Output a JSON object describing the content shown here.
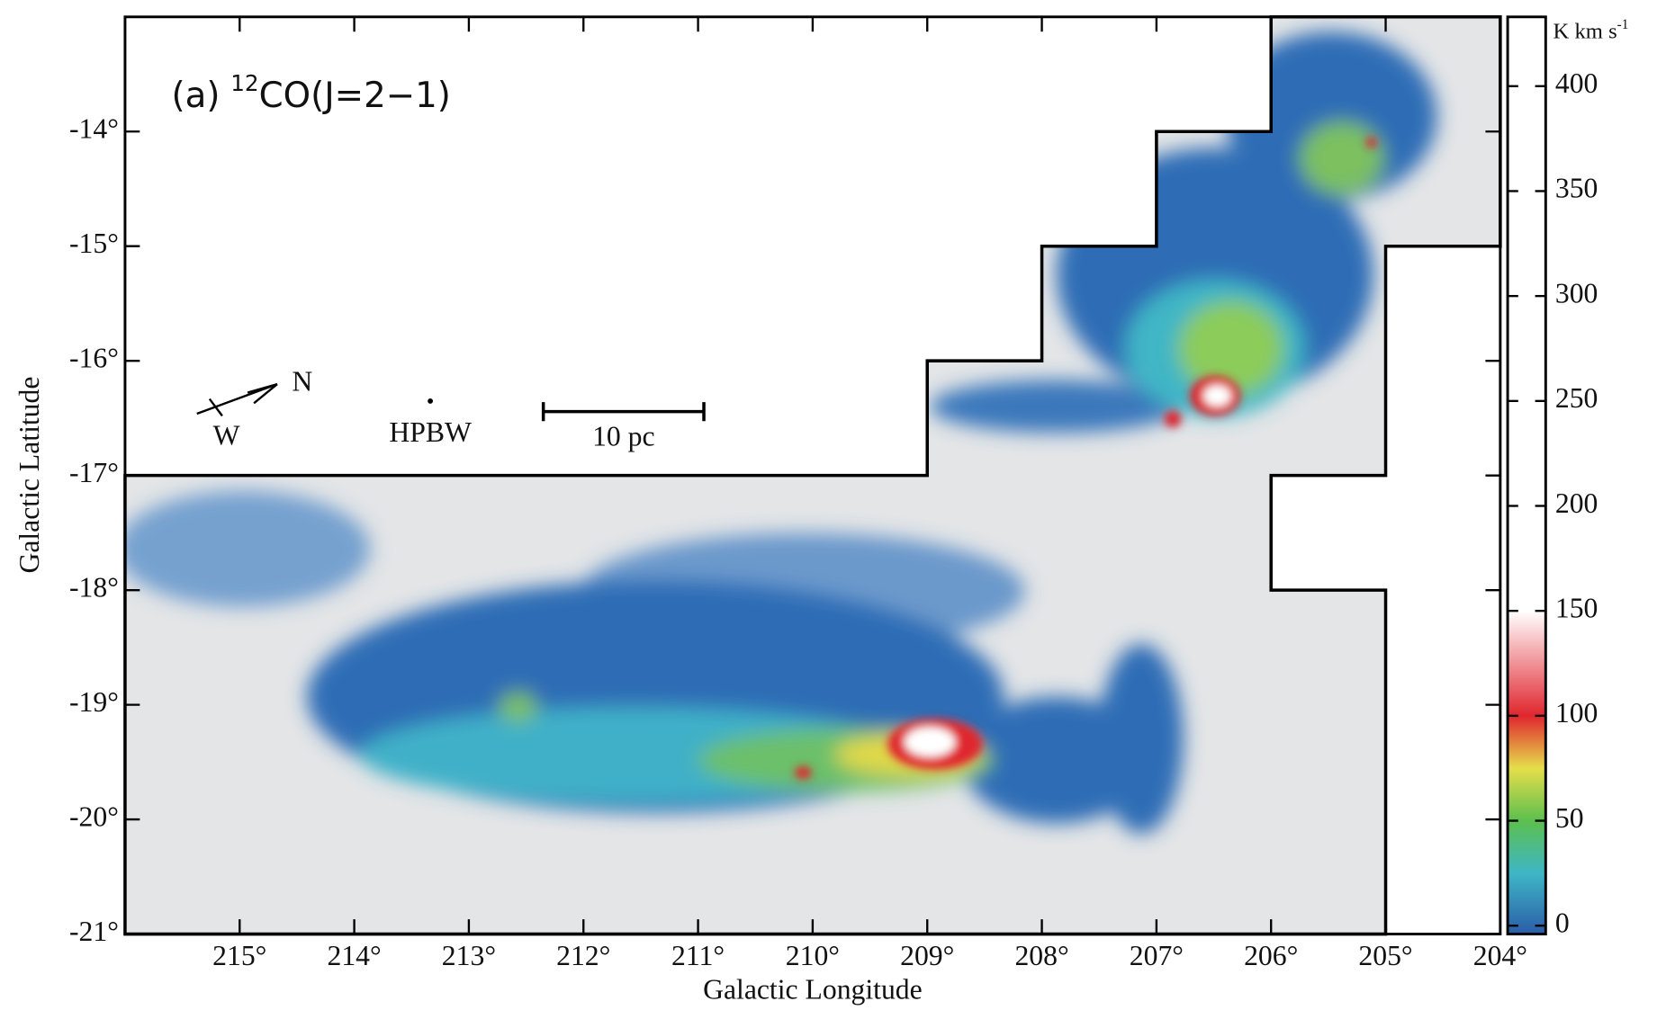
{
  "chart_data": {
    "type": "intensity-map",
    "title_prefix": "(a)",
    "title_isotope": "12",
    "title_line": "CO(J=2−1)",
    "x_label": "Galactic Longitude",
    "y_label": "Galactic Latitude",
    "xlim": [
      216,
      204
    ],
    "ylim": [
      -21,
      -13
    ],
    "xticks": [
      {
        "value": 215,
        "label": "215°"
      },
      {
        "value": 214,
        "label": "214°"
      },
      {
        "value": 213,
        "label": "213°"
      },
      {
        "value": 212,
        "label": "212°"
      },
      {
        "value": 211,
        "label": "211°"
      },
      {
        "value": 210,
        "label": "210°"
      },
      {
        "value": 209,
        "label": "209°"
      },
      {
        "value": 208,
        "label": "208°"
      },
      {
        "value": 207,
        "label": "207°"
      },
      {
        "value": 206,
        "label": "206°"
      },
      {
        "value": 205,
        "label": "205°"
      },
      {
        "value": 204,
        "label": "204°"
      }
    ],
    "yticks": [
      {
        "value": -14,
        "label": "-14°"
      },
      {
        "value": -15,
        "label": "-15°"
      },
      {
        "value": -16,
        "label": "-16°"
      },
      {
        "value": -17,
        "label": "-17°"
      },
      {
        "value": -18,
        "label": "-18°"
      },
      {
        "value": -19,
        "label": "-19°"
      },
      {
        "value": -20,
        "label": "-20°"
      },
      {
        "value": -21,
        "label": "-21°"
      }
    ],
    "survey_boundary": {
      "x": [
        216,
        209,
        209,
        208,
        208,
        207,
        207,
        206,
        206,
        204,
        204,
        205,
        205,
        206,
        206,
        205,
        205,
        216
      ],
      "y": [
        -17,
        -17,
        -16,
        -16,
        -15,
        -15,
        -14,
        -14,
        -13,
        -13,
        -15,
        -15,
        -17,
        -17,
        -18,
        -18,
        -21,
        -21
      ]
    },
    "colorbar": {
      "unit": "K km s",
      "unit_power": "-1",
      "clim": [
        -4,
        433
      ],
      "ticks": [
        0,
        50,
        100,
        150,
        200,
        250,
        300,
        350,
        400
      ],
      "colormap": [
        {
          "value": -4,
          "color": "#2a5ca8"
        },
        {
          "value": 25,
          "color": "#3fb6c6"
        },
        {
          "value": 50,
          "color": "#5cbf4e"
        },
        {
          "value": 75,
          "color": "#e6de4a"
        },
        {
          "value": 100,
          "color": "#e0262e"
        },
        {
          "value": 150,
          "color": "#ffffff"
        },
        {
          "value": 433,
          "color": "#ffffff"
        }
      ]
    },
    "annotations": {
      "north": "N",
      "west": "W",
      "beam": "HPBW",
      "scale": "10 pc"
    }
  }
}
